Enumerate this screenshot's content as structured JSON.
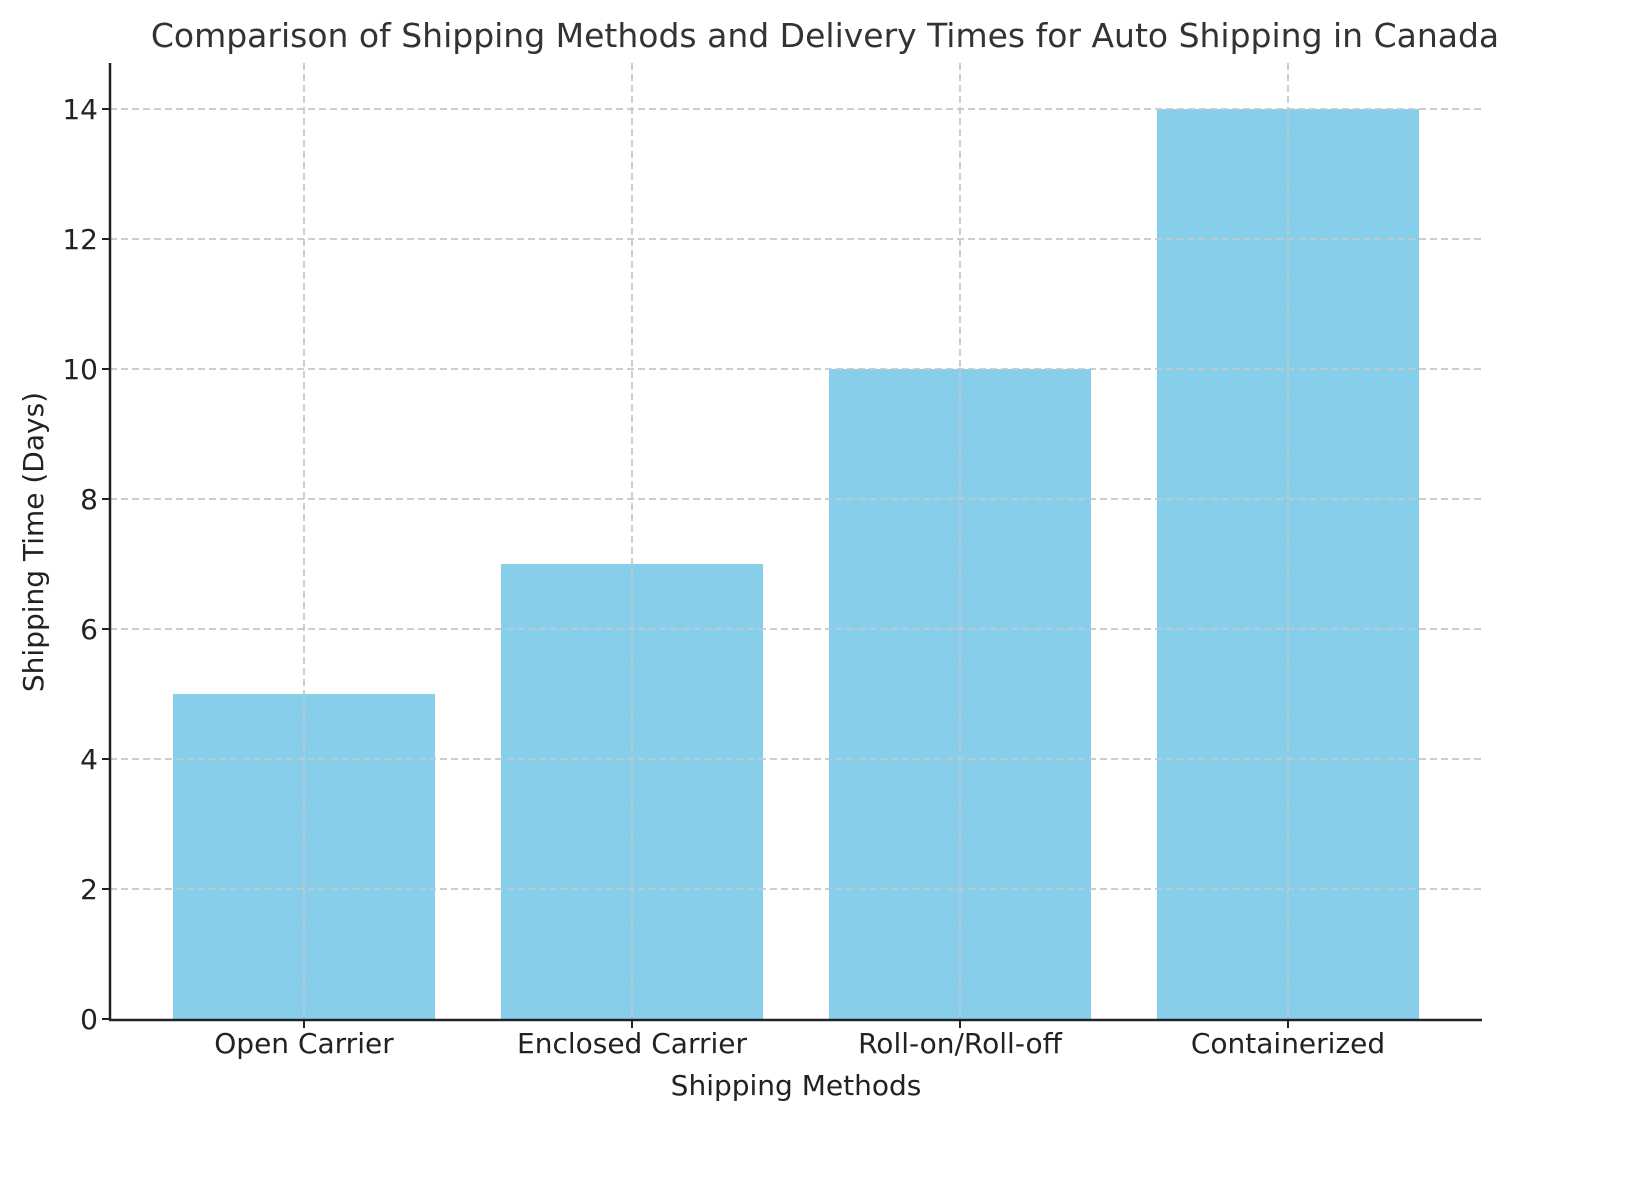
{
  "chart_data": {
    "type": "bar",
    "title": "Comparison of Shipping Methods and Delivery Times for Auto Shipping in Canada",
    "xlabel": "Shipping Methods",
    "ylabel": "Shipping Time (Days)",
    "categories": [
      "Open Carrier",
      "Enclosed Carrier",
      "Roll-on/Roll-off",
      "Containerized"
    ],
    "values": [
      5,
      7,
      10,
      14
    ],
    "ylim": [
      0,
      14.7
    ],
    "yticks": [
      0,
      2,
      4,
      6,
      8,
      10,
      12,
      14
    ],
    "grid": true,
    "grid_style": "dashed",
    "legend": null,
    "bar_color": "#87CEEB"
  }
}
